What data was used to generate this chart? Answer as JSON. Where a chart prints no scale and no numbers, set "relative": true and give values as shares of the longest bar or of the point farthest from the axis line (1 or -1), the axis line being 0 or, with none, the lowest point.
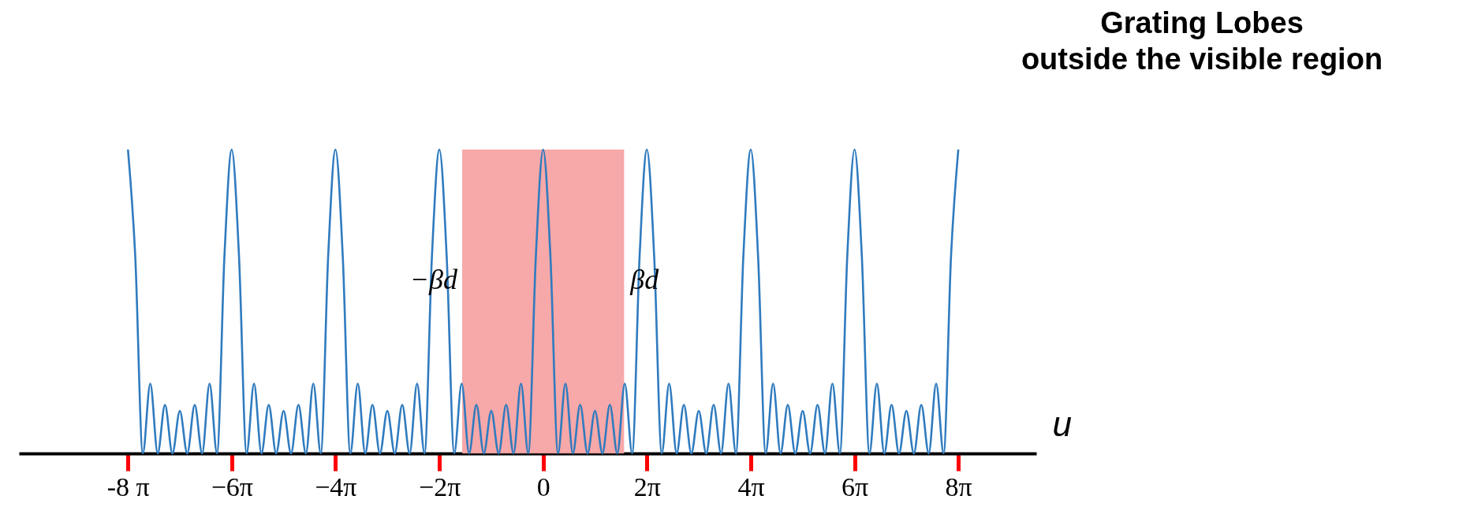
{
  "chart_data": {
    "type": "line",
    "relative": true,
    "xlabel": "u",
    "annotations": [
      "Grating Lobes\noutside the visible region",
      "−βd",
      "βd"
    ],
    "xlim": [
      -31.73,
      29.85
    ],
    "xticks": [
      {
        "value": -25.13,
        "label": "-8 π"
      },
      {
        "value": -18.85,
        "label": "−6π"
      },
      {
        "value": -12.57,
        "label": "−4π"
      },
      {
        "value": -6.28,
        "label": "−2π"
      },
      0,
      {
        "value": 6.28,
        "label": "2π"
      },
      {
        "value": 12.57,
        "label": "4π"
      },
      {
        "value": 18.85,
        "label": "6π"
      },
      {
        "value": 25.13,
        "label": "8π"
      }
    ],
    "bands": [
      {
        "axis": "x",
        "from": -4.9,
        "to": 4.9,
        "color": "#f7a3a3"
      }
    ],
    "grid": false,
    "marker": "none",
    "line_style": "solid",
    "series": [
      {
        "color": "#2f7bbf",
        "x": [
          -25.13,
          -24.69,
          -24.23,
          -23.78,
          -23.33,
          -22.89,
          -22.44,
          -21.99,
          -21.54,
          -21.09,
          -20.64,
          -20.19,
          -19.74,
          -19.29,
          -18.85,
          -18.41,
          -17.95,
          -17.5,
          -17.05,
          -16.61,
          -16.16,
          -15.71,
          -15.26,
          -14.81,
          -14.36,
          -13.91,
          -13.46,
          -13.01,
          -12.57,
          -12.13,
          -11.67,
          -11.22,
          -10.77,
          -10.33,
          -9.88,
          -9.43,
          -8.98,
          -8.53,
          -8.08,
          -7.63,
          -7.18,
          -6.73,
          -6.28,
          -5.84,
          -5.38,
          -4.93,
          -4.48,
          -4.04,
          -3.59,
          -3.14,
          -2.69,
          -2.24,
          -1.79,
          -1.34,
          -0.9,
          -0.44,
          0,
          0.44,
          0.9,
          1.35,
          1.8,
          2.24,
          2.69,
          3.14,
          3.59,
          4.04,
          4.49,
          4.94,
          5.39,
          5.84,
          6.28,
          6.72,
          7.18,
          7.63,
          8.08,
          8.52,
          8.97,
          9.42,
          9.87,
          10.32,
          10.77,
          11.22,
          11.67,
          12.12,
          12.57,
          13.01,
          13.47,
          13.92,
          14.37,
          14.81,
          15.26,
          15.71,
          16.16,
          16.61,
          17.06,
          17.51,
          17.96,
          18.41,
          18.85,
          19.29,
          19.75,
          20.2,
          20.65,
          21.09,
          21.54,
          21.99,
          22.44,
          22.89,
          23.34,
          23.79,
          24.24,
          24.69,
          25.13
        ],
        "values": [
          1,
          0.65,
          0,
          0.23,
          0,
          0.16,
          0,
          0.14,
          0,
          0.16,
          0,
          0.23,
          0,
          0.65,
          1,
          0.65,
          0,
          0.23,
          0,
          0.16,
          0,
          0.14,
          0,
          0.16,
          0,
          0.23,
          0,
          0.65,
          1,
          0.65,
          0,
          0.23,
          0,
          0.16,
          0,
          0.14,
          0,
          0.16,
          0,
          0.23,
          0,
          0.65,
          1,
          0.65,
          0,
          0.23,
          0,
          0.16,
          0,
          0.14,
          0,
          0.16,
          0,
          0.23,
          0,
          0.65,
          1,
          0.65,
          0,
          0.23,
          0,
          0.16,
          0,
          0.14,
          0,
          0.16,
          0,
          0.23,
          0,
          0.65,
          1,
          0.65,
          0,
          0.23,
          0,
          0.16,
          0,
          0.14,
          0,
          0.16,
          0,
          0.23,
          0,
          0.65,
          1,
          0.65,
          0,
          0.23,
          0,
          0.16,
          0,
          0.14,
          0,
          0.16,
          0,
          0.23,
          0,
          0.65,
          1,
          0.65,
          0,
          0.23,
          0,
          0.16,
          0,
          0.14,
          0,
          0.16,
          0,
          0.23,
          0,
          0.65,
          1
        ]
      }
    ]
  }
}
